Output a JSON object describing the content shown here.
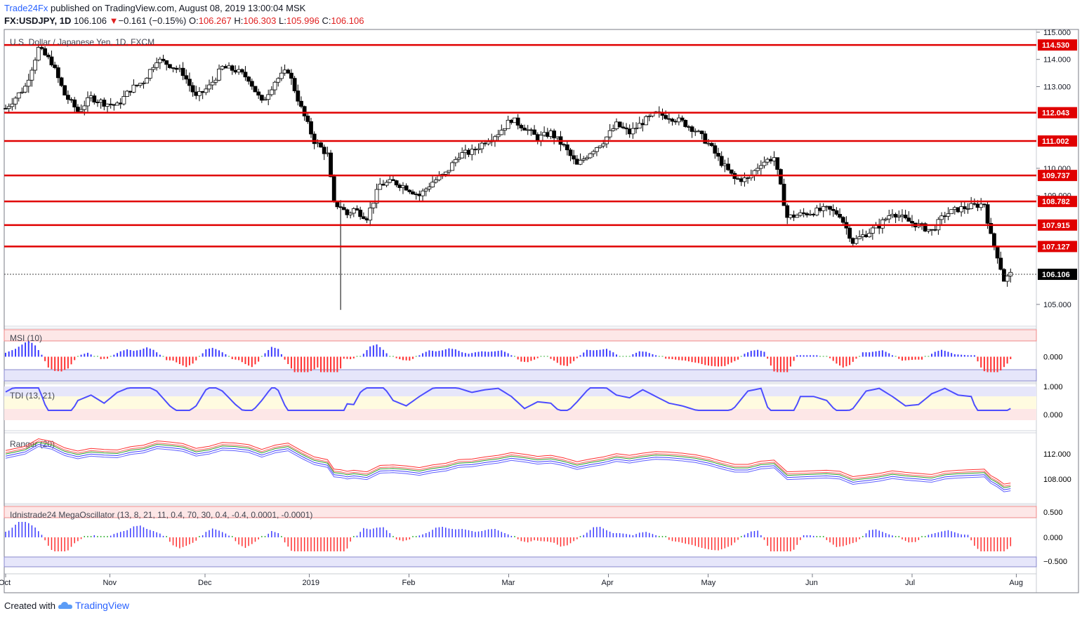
{
  "header": {
    "brand": "Trade24Fx",
    "published": " published on TradingView.com, August 08, 2019 13:00:04 MSK",
    "symbol": "FX:USDJPY, 1D",
    "last": "106.106",
    "change": "−0.161 (−0.15%)",
    "o_label": "O:",
    "o": "106.267",
    "h_label": "H:",
    "h": "106.303",
    "l_label": "L:",
    "l": "105.996",
    "c_label": "C:",
    "c": "106.106"
  },
  "footer": {
    "created_with": "Created with",
    "brand": "TradingView"
  },
  "colors": {
    "accent": "#2962ff",
    "level": "#e00000",
    "bull": "#ffffff",
    "bear": "#000000",
    "pos_hist": "#3c3cff",
    "neg_hist": "#ff3030",
    "neutral_hist": "#3cb43c"
  },
  "chart_data": {
    "type": "candlestick",
    "title": "U.S. Dollar / Japanese Yen, 1D, FXCM",
    "x_tick_labels": [
      "Oct",
      "Nov",
      "Dec",
      "2019",
      "Feb",
      "Mar",
      "Apr",
      "May",
      "Jun",
      "Jul",
      "Aug"
    ],
    "y_tick_labels": [
      "115.000",
      "114.000",
      "113.000",
      "110.000",
      "109.000",
      "105.000"
    ],
    "ylim": [
      104.2,
      115.1
    ],
    "horizontal_levels": [
      {
        "value": 114.53,
        "label": "114.530"
      },
      {
        "value": 112.043,
        "label": "112.043"
      },
      {
        "value": 111.002,
        "label": "111.002"
      },
      {
        "value": 109.737,
        "label": "109.737"
      },
      {
        "value": 108.782,
        "label": "108.782"
      },
      {
        "value": 107.915,
        "label": "107.915"
      },
      {
        "value": 107.127,
        "label": "107.127"
      }
    ],
    "last_price": {
      "value": 106.106,
      "label": "106.106"
    },
    "price_path": [
      [
        0,
        112.2
      ],
      [
        6,
        113.0
      ],
      [
        10,
        114.4
      ],
      [
        14,
        113.9
      ],
      [
        18,
        112.7
      ],
      [
        22,
        112.1
      ],
      [
        26,
        112.6
      ],
      [
        30,
        112.4
      ],
      [
        34,
        112.3
      ],
      [
        38,
        112.9
      ],
      [
        42,
        113.2
      ],
      [
        46,
        114.0
      ],
      [
        50,
        113.8
      ],
      [
        54,
        113.5
      ],
      [
        58,
        112.6
      ],
      [
        62,
        113.0
      ],
      [
        66,
        113.7
      ],
      [
        70,
        113.6
      ],
      [
        74,
        113.3
      ],
      [
        78,
        112.4
      ],
      [
        82,
        113.2
      ],
      [
        86,
        113.6
      ],
      [
        90,
        112.2
      ],
      [
        94,
        111.0
      ],
      [
        98,
        110.5
      ],
      [
        100,
        108.7
      ],
      [
        102,
        108.6
      ],
      [
        104,
        108.3
      ],
      [
        106,
        108.5
      ],
      [
        110,
        108.2
      ],
      [
        114,
        109.4
      ],
      [
        118,
        109.5
      ],
      [
        122,
        109.3
      ],
      [
        126,
        109.0
      ],
      [
        130,
        109.5
      ],
      [
        134,
        109.8
      ],
      [
        138,
        110.5
      ],
      [
        142,
        110.6
      ],
      [
        146,
        111.0
      ],
      [
        150,
        111.3
      ],
      [
        154,
        111.8
      ],
      [
        158,
        111.5
      ],
      [
        162,
        111.1
      ],
      [
        166,
        111.3
      ],
      [
        170,
        110.8
      ],
      [
        174,
        110.1
      ],
      [
        178,
        110.6
      ],
      [
        182,
        111.0
      ],
      [
        186,
        111.6
      ],
      [
        190,
        111.3
      ],
      [
        194,
        111.7
      ],
      [
        198,
        112.0
      ],
      [
        202,
        111.9
      ],
      [
        206,
        111.7
      ],
      [
        210,
        111.4
      ],
      [
        214,
        110.9
      ],
      [
        218,
        110.2
      ],
      [
        222,
        109.6
      ],
      [
        226,
        109.6
      ],
      [
        230,
        110.2
      ],
      [
        234,
        110.4
      ],
      [
        236,
        109.3
      ],
      [
        238,
        108.2
      ],
      [
        242,
        108.3
      ],
      [
        246,
        108.4
      ],
      [
        250,
        108.5
      ],
      [
        254,
        108.3
      ],
      [
        258,
        107.3
      ],
      [
        262,
        107.6
      ],
      [
        266,
        107.9
      ],
      [
        270,
        108.4
      ],
      [
        274,
        108.1
      ],
      [
        278,
        107.9
      ],
      [
        282,
        107.7
      ],
      [
        286,
        108.3
      ],
      [
        290,
        108.5
      ],
      [
        294,
        108.6
      ],
      [
        298,
        108.7
      ],
      [
        300,
        107.5
      ],
      [
        302,
        106.8
      ],
      [
        304,
        105.9
      ],
      [
        306,
        106.1
      ]
    ],
    "x_ticks_positions": [
      0,
      23,
      44,
      67,
      89,
      111,
      133,
      155,
      178,
      200,
      223
    ],
    "indicators": [
      {
        "name": "MSI (10)",
        "y_tick_labels": [
          "0.000"
        ]
      },
      {
        "name": "TDI (13, 21)",
        "y_tick_labels": [
          "1.000",
          "0.000"
        ]
      },
      {
        "name": "Ranger (20)",
        "y_tick_labels": [
          "112.000",
          "108.000"
        ]
      },
      {
        "name": "Idnistrade24 MegaOscillator (13, 8, 21, 11, 0.4, 70, 30, 0.4, -0.4, 0.0001, -0.0001)",
        "y_tick_labels": [
          "0.500",
          "0.000",
          "−0.500"
        ]
      }
    ]
  }
}
